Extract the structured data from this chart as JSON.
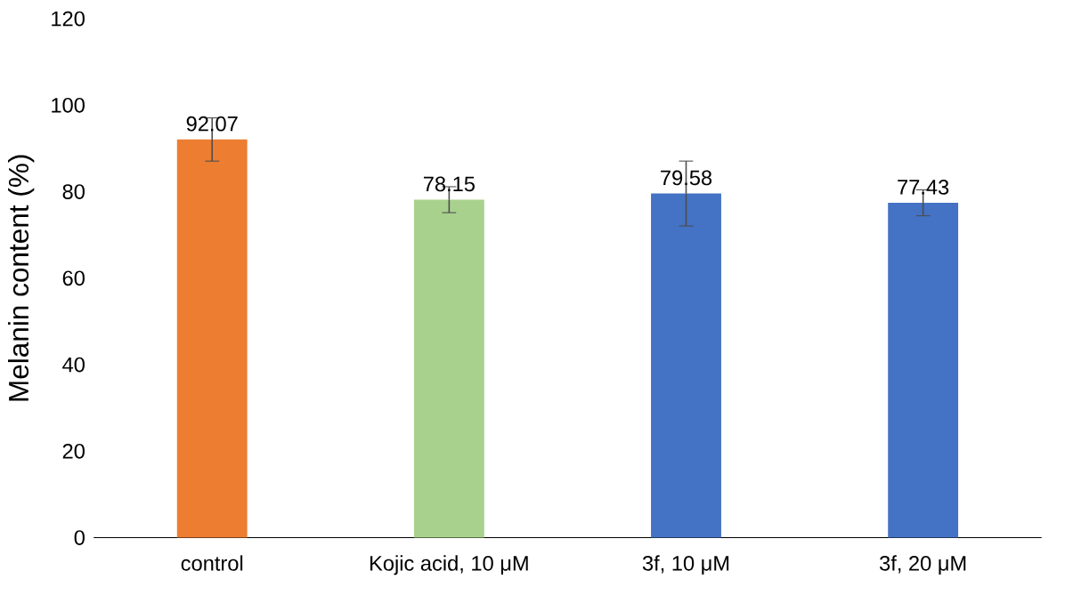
{
  "chart_data": {
    "type": "bar",
    "ylabel": "Melanin content  (%)",
    "categories": [
      "control",
      "Kojic acid, 10 μM",
      "3f, 10 μM",
      "3f, 20 μM"
    ],
    "values": [
      92.07,
      78.15,
      79.58,
      77.43
    ],
    "colors": [
      "#ed7d31",
      "#a9d18e",
      "#4472c4",
      "#4472c4"
    ],
    "errors": [
      5,
      3,
      7.5,
      3
    ],
    "data_labels": true,
    "ylim": [
      0,
      120
    ],
    "yticks": [
      0,
      20,
      40,
      60,
      80,
      100,
      120
    ],
    "grid": false
  }
}
